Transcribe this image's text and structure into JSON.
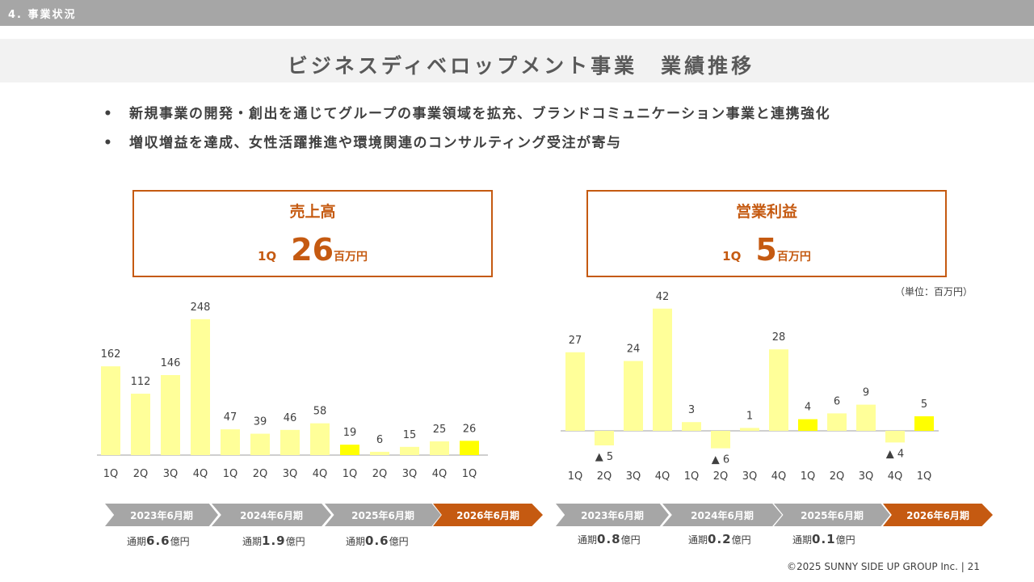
{
  "header": {
    "section": "4. 事業状況",
    "title": "ビジネスディベロップメント事業　業績推移"
  },
  "bullets": [
    "新規事業の開発・創出を通じてグループの事業領域を拡充、ブランドコミュニケーション事業と連携強化",
    "増収増益を達成、女性活躍推進や環境関連のコンサルティング受注が寄与"
  ],
  "bullet_marker": "•",
  "kpis": {
    "sales": {
      "label": "売上高",
      "quarter": "1Q",
      "value": "26",
      "unit": "百万円"
    },
    "op": {
      "label": "営業利益",
      "quarter": "1Q",
      "value": "5",
      "unit": "百万円"
    }
  },
  "unit_note": "（単位：百万円）",
  "colors": {
    "bar": "#ffff99",
    "bar_current": "#ffff00",
    "accent": "#c55a11",
    "period_gray": "#a6a6a6"
  },
  "periods": {
    "labels": [
      "2023年6月期",
      "2024年6月期",
      "2025年6月期",
      "2026年6月期"
    ],
    "sales_totals": [
      {
        "prefix": "通期",
        "value": "6.6",
        "suffix": "億円"
      },
      {
        "prefix": "通期",
        "value": "1.9",
        "suffix": "億円"
      },
      {
        "prefix": "通期",
        "value": "0.6",
        "suffix": "億円"
      }
    ],
    "op_totals": [
      {
        "prefix": "通期",
        "value": "0.8",
        "suffix": "億円"
      },
      {
        "prefix": "通期",
        "value": "0.2",
        "suffix": "億円"
      },
      {
        "prefix": "通期",
        "value": "0.1",
        "suffix": "億円"
      }
    ]
  },
  "chart_data": [
    {
      "type": "bar",
      "title": "売上高",
      "categories": [
        "1Q",
        "2Q",
        "3Q",
        "4Q",
        "1Q",
        "2Q",
        "3Q",
        "4Q",
        "1Q",
        "2Q",
        "3Q",
        "4Q",
        "1Q"
      ],
      "values": [
        162,
        112,
        146,
        248,
        47,
        39,
        46,
        58,
        19,
        6,
        15,
        25,
        26
      ],
      "value_labels": [
        "162",
        "112",
        "146",
        "248",
        "47",
        "39",
        "46",
        "58",
        "19",
        "6",
        "15",
        "25",
        "26"
      ],
      "highlight_index": [
        8,
        12
      ]
    },
    {
      "type": "bar",
      "title": "営業利益",
      "categories": [
        "1Q",
        "2Q",
        "3Q",
        "4Q",
        "1Q",
        "2Q",
        "3Q",
        "4Q",
        "1Q",
        "2Q",
        "3Q",
        "4Q",
        "1Q"
      ],
      "values": [
        27,
        -5,
        24,
        42,
        3,
        -6,
        1,
        28,
        4,
        6,
        9,
        -4,
        5
      ],
      "value_labels": [
        "27",
        "▲ 5",
        "24",
        "42",
        "3",
        "▲ 6",
        "1",
        "28",
        "4",
        "6",
        "9",
        "▲ 4",
        "5"
      ],
      "highlight_index": [
        8,
        12
      ]
    }
  ],
  "footer": "©2025 SUNNY SIDE UP GROUP Inc.  |  21"
}
